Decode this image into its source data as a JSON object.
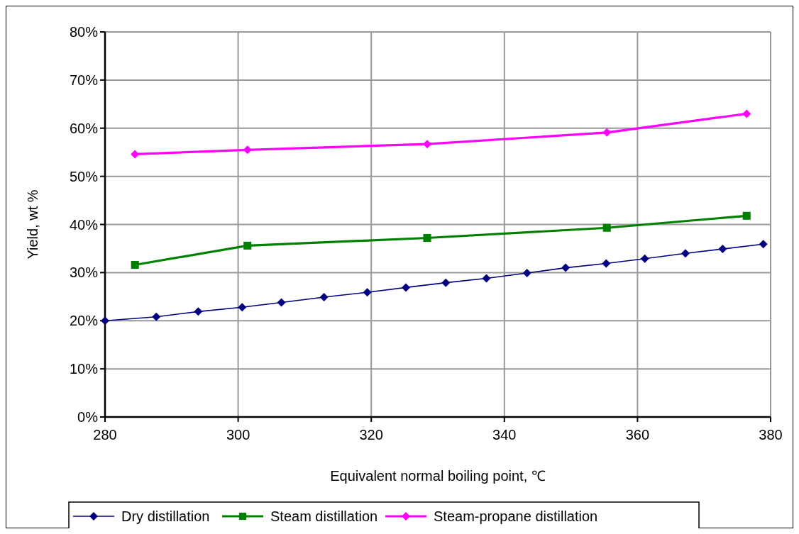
{
  "chart_data": {
    "type": "line",
    "xlabel": "Equivalent normal boiling point, ℃",
    "ylabel": "Yield, wt %",
    "xlim": [
      280,
      380
    ],
    "xticks": [
      280,
      300,
      320,
      340,
      360,
      380
    ],
    "ylim": [
      0,
      80
    ],
    "yticks": [
      {
        "value": 0,
        "label": "0%"
      },
      {
        "value": 10,
        "label": "10%"
      },
      {
        "value": 20,
        "label": "20%"
      },
      {
        "value": 30,
        "label": "30%"
      },
      {
        "value": 40,
        "label": "40%"
      },
      {
        "value": 50,
        "label": "50%"
      },
      {
        "value": 60,
        "label": "60%"
      },
      {
        "value": 70,
        "label": "70%"
      },
      {
        "value": 80,
        "label": "80%"
      }
    ],
    "grid": true,
    "legend": "bottom",
    "series": [
      {
        "name": "Dry distillation",
        "color": "#000080",
        "marker": "diamond",
        "x": [
          280,
          287.7,
          294.0,
          300.6,
          306.5,
          312.9,
          319.4,
          325.2,
          331.2,
          337.3,
          343.4,
          349.2,
          355.3,
          361.1,
          367.2,
          372.8,
          378.9
        ],
        "values": [
          20.0,
          20.8,
          21.9,
          22.8,
          23.8,
          24.9,
          25.9,
          26.9,
          27.9,
          28.8,
          29.9,
          31.0,
          31.9,
          32.9,
          34.0,
          34.9,
          35.9
        ]
      },
      {
        "name": "Steam distillation",
        "color": "#008000",
        "marker": "square",
        "x": [
          284.5,
          301.4,
          328.4,
          355.4,
          376.4
        ],
        "values": [
          31.6,
          35.6,
          37.2,
          39.3,
          41.8
        ]
      },
      {
        "name": "Steam-propane distillation",
        "color": "#ff00ff",
        "marker": "diamond",
        "x": [
          284.5,
          301.4,
          328.4,
          355.4,
          376.4
        ],
        "values": [
          54.6,
          55.5,
          56.7,
          59.1,
          63.0
        ]
      }
    ]
  }
}
